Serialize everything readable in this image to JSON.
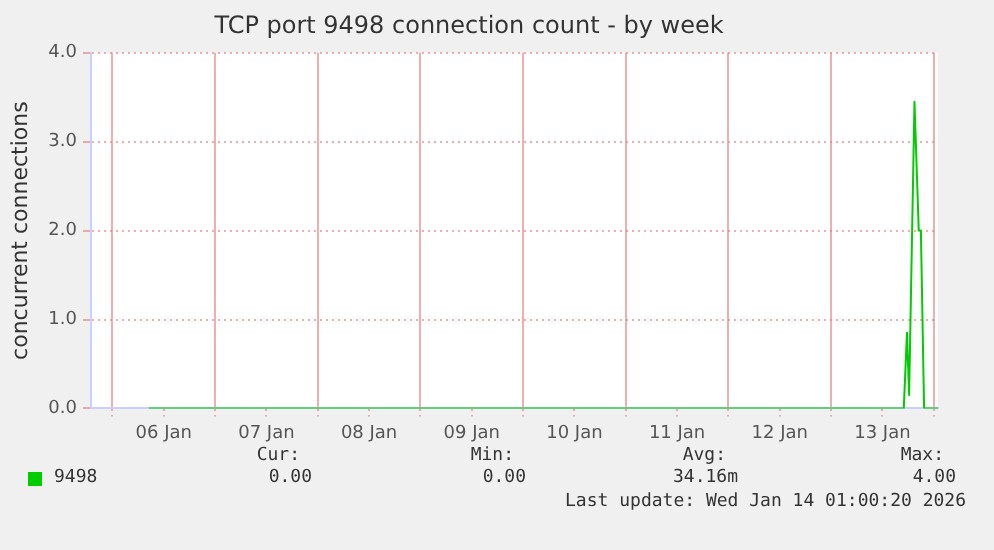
{
  "chart_data": {
    "type": "line",
    "title": "TCP port 9498 connection count - by week",
    "ylabel": "concurrent connections",
    "x": [
      "2026-01-06T08:30",
      "2026-01-13T17:00",
      "2026-01-13T17:45",
      "2026-01-13T18:15",
      "2026-01-13T19:30",
      "2026-01-13T20:30",
      "2026-01-13T21:00",
      "2026-01-13T21:45",
      "2026-01-14T01:00"
    ],
    "series": [
      {
        "name": "9498",
        "color": "#00cc00",
        "values": [
          0,
          0,
          0.85,
          0.15,
          3.45,
          2.0,
          2.0,
          0,
          0
        ]
      }
    ],
    "xlim": [
      "2026-01-05T19:00",
      "2026-01-14T01:00"
    ],
    "xticks": [
      {
        "value": "2026-01-06T00:00",
        "label": null
      },
      {
        "value": "2026-01-06T12:00",
        "label": "06 Jan"
      },
      {
        "value": "2026-01-07T00:00",
        "label": null
      },
      {
        "value": "2026-01-07T12:00",
        "label": "07 Jan"
      },
      {
        "value": "2026-01-08T00:00",
        "label": null
      },
      {
        "value": "2026-01-08T12:00",
        "label": "08 Jan"
      },
      {
        "value": "2026-01-09T00:00",
        "label": null
      },
      {
        "value": "2026-01-09T12:00",
        "label": "09 Jan"
      },
      {
        "value": "2026-01-10T00:00",
        "label": null
      },
      {
        "value": "2026-01-10T12:00",
        "label": "10 Jan"
      },
      {
        "value": "2026-01-11T00:00",
        "label": null
      },
      {
        "value": "2026-01-11T12:00",
        "label": "11 Jan"
      },
      {
        "value": "2026-01-12T00:00",
        "label": null
      },
      {
        "value": "2026-01-12T12:00",
        "label": "12 Jan"
      },
      {
        "value": "2026-01-13T00:00",
        "label": null
      },
      {
        "value": "2026-01-13T12:00",
        "label": "13 Jan"
      },
      {
        "value": "2026-01-14T00:00",
        "label": null
      }
    ],
    "ylim": [
      0,
      4
    ],
    "yticks": [
      {
        "value": 0,
        "label": "0.0"
      },
      {
        "value": 1,
        "label": "1.0"
      },
      {
        "value": 2,
        "label": "2.0"
      },
      {
        "value": 3,
        "label": "3.0"
      },
      {
        "value": 4,
        "label": "4.0"
      }
    ],
    "grid": true,
    "legend": "bottom",
    "marker": "none",
    "line_style": "solid",
    "annotations": [
      "Cur:",
      "Min:",
      "Avg:",
      "Max:",
      "0.00",
      "0.00",
      "34.16m",
      "4.00",
      "Last update: Wed Jan 14 01:00:20 2026"
    ]
  }
}
